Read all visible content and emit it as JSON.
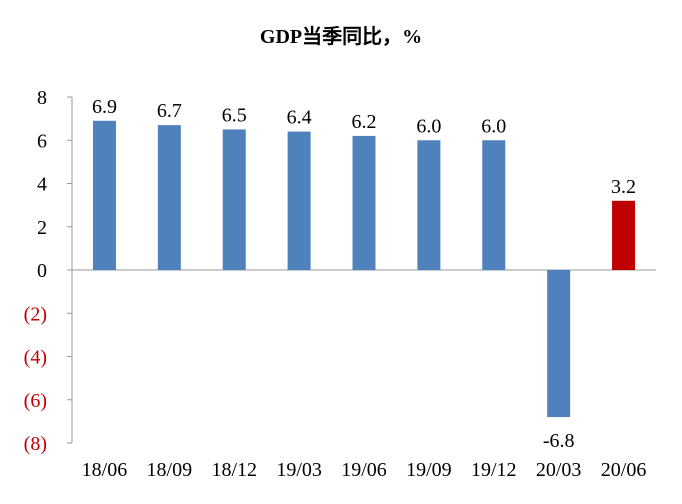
{
  "chart_data": {
    "type": "bar",
    "title": "GDP当季同比，%",
    "xlabel": "",
    "ylabel": "",
    "categories": [
      "18/06",
      "18/09",
      "18/12",
      "19/03",
      "19/06",
      "19/09",
      "19/12",
      "20/03",
      "20/06"
    ],
    "values": [
      6.9,
      6.7,
      6.5,
      6.4,
      6.2,
      6.0,
      6.0,
      -6.8,
      3.2
    ],
    "value_labels": [
      "6.9",
      "6.7",
      "6.5",
      "6.4",
      "6.2",
      "6.0",
      "6.0",
      "-6.8",
      "3.2"
    ],
    "bar_colors": [
      "#4f81bd",
      "#4f81bd",
      "#4f81bd",
      "#4f81bd",
      "#4f81bd",
      "#4f81bd",
      "#4f81bd",
      "#4f81bd",
      "#c00000"
    ],
    "ylim": [
      -8,
      8
    ],
    "y_ticks": [
      8,
      6,
      4,
      2,
      0,
      -2,
      -4,
      -6,
      -8
    ],
    "y_tick_labels": [
      "8",
      "6",
      "4",
      "2",
      "0",
      "(2)",
      "(4)",
      "(6)",
      "(8)"
    ],
    "y_tick_colors": [
      "#000000",
      "#000000",
      "#000000",
      "#000000",
      "#000000",
      "#c00000",
      "#c00000",
      "#c00000",
      "#c00000"
    ],
    "grid": false,
    "legend": "none"
  }
}
